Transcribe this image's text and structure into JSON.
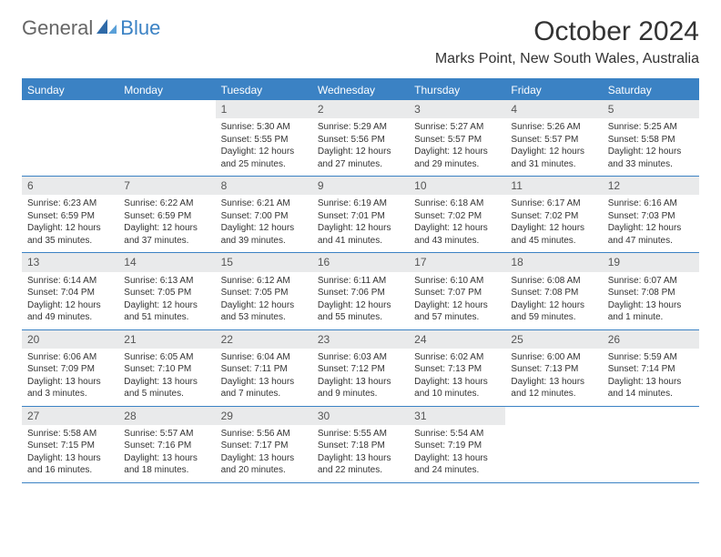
{
  "logo": {
    "general": "General",
    "blue": "Blue"
  },
  "title": "October 2024",
  "location": "Marks Point, New South Wales, Australia",
  "colors": {
    "header_bg": "#3b82c4",
    "header_text": "#ffffff",
    "daynum_bg": "#e9eaeb",
    "daynum_text": "#555555",
    "cell_text": "#333333",
    "border": "#3b82c4",
    "page_bg": "#ffffff"
  },
  "day_names": [
    "Sunday",
    "Monday",
    "Tuesday",
    "Wednesday",
    "Thursday",
    "Friday",
    "Saturday"
  ],
  "layout": {
    "columns": 7,
    "rows": 5,
    "cell_font_size_pt": 7.5,
    "header_font_size_pt": 9,
    "title_font_size_pt": 22,
    "location_font_size_pt": 12
  },
  "weeks": [
    [
      {
        "day": "",
        "sunrise": "",
        "sunset": "",
        "daylight": ""
      },
      {
        "day": "",
        "sunrise": "",
        "sunset": "",
        "daylight": ""
      },
      {
        "day": "1",
        "sunrise": "Sunrise: 5:30 AM",
        "sunset": "Sunset: 5:55 PM",
        "daylight": "Daylight: 12 hours and 25 minutes."
      },
      {
        "day": "2",
        "sunrise": "Sunrise: 5:29 AM",
        "sunset": "Sunset: 5:56 PM",
        "daylight": "Daylight: 12 hours and 27 minutes."
      },
      {
        "day": "3",
        "sunrise": "Sunrise: 5:27 AM",
        "sunset": "Sunset: 5:57 PM",
        "daylight": "Daylight: 12 hours and 29 minutes."
      },
      {
        "day": "4",
        "sunrise": "Sunrise: 5:26 AM",
        "sunset": "Sunset: 5:57 PM",
        "daylight": "Daylight: 12 hours and 31 minutes."
      },
      {
        "day": "5",
        "sunrise": "Sunrise: 5:25 AM",
        "sunset": "Sunset: 5:58 PM",
        "daylight": "Daylight: 12 hours and 33 minutes."
      }
    ],
    [
      {
        "day": "6",
        "sunrise": "Sunrise: 6:23 AM",
        "sunset": "Sunset: 6:59 PM",
        "daylight": "Daylight: 12 hours and 35 minutes."
      },
      {
        "day": "7",
        "sunrise": "Sunrise: 6:22 AM",
        "sunset": "Sunset: 6:59 PM",
        "daylight": "Daylight: 12 hours and 37 minutes."
      },
      {
        "day": "8",
        "sunrise": "Sunrise: 6:21 AM",
        "sunset": "Sunset: 7:00 PM",
        "daylight": "Daylight: 12 hours and 39 minutes."
      },
      {
        "day": "9",
        "sunrise": "Sunrise: 6:19 AM",
        "sunset": "Sunset: 7:01 PM",
        "daylight": "Daylight: 12 hours and 41 minutes."
      },
      {
        "day": "10",
        "sunrise": "Sunrise: 6:18 AM",
        "sunset": "Sunset: 7:02 PM",
        "daylight": "Daylight: 12 hours and 43 minutes."
      },
      {
        "day": "11",
        "sunrise": "Sunrise: 6:17 AM",
        "sunset": "Sunset: 7:02 PM",
        "daylight": "Daylight: 12 hours and 45 minutes."
      },
      {
        "day": "12",
        "sunrise": "Sunrise: 6:16 AM",
        "sunset": "Sunset: 7:03 PM",
        "daylight": "Daylight: 12 hours and 47 minutes."
      }
    ],
    [
      {
        "day": "13",
        "sunrise": "Sunrise: 6:14 AM",
        "sunset": "Sunset: 7:04 PM",
        "daylight": "Daylight: 12 hours and 49 minutes."
      },
      {
        "day": "14",
        "sunrise": "Sunrise: 6:13 AM",
        "sunset": "Sunset: 7:05 PM",
        "daylight": "Daylight: 12 hours and 51 minutes."
      },
      {
        "day": "15",
        "sunrise": "Sunrise: 6:12 AM",
        "sunset": "Sunset: 7:05 PM",
        "daylight": "Daylight: 12 hours and 53 minutes."
      },
      {
        "day": "16",
        "sunrise": "Sunrise: 6:11 AM",
        "sunset": "Sunset: 7:06 PM",
        "daylight": "Daylight: 12 hours and 55 minutes."
      },
      {
        "day": "17",
        "sunrise": "Sunrise: 6:10 AM",
        "sunset": "Sunset: 7:07 PM",
        "daylight": "Daylight: 12 hours and 57 minutes."
      },
      {
        "day": "18",
        "sunrise": "Sunrise: 6:08 AM",
        "sunset": "Sunset: 7:08 PM",
        "daylight": "Daylight: 12 hours and 59 minutes."
      },
      {
        "day": "19",
        "sunrise": "Sunrise: 6:07 AM",
        "sunset": "Sunset: 7:08 PM",
        "daylight": "Daylight: 13 hours and 1 minute."
      }
    ],
    [
      {
        "day": "20",
        "sunrise": "Sunrise: 6:06 AM",
        "sunset": "Sunset: 7:09 PM",
        "daylight": "Daylight: 13 hours and 3 minutes."
      },
      {
        "day": "21",
        "sunrise": "Sunrise: 6:05 AM",
        "sunset": "Sunset: 7:10 PM",
        "daylight": "Daylight: 13 hours and 5 minutes."
      },
      {
        "day": "22",
        "sunrise": "Sunrise: 6:04 AM",
        "sunset": "Sunset: 7:11 PM",
        "daylight": "Daylight: 13 hours and 7 minutes."
      },
      {
        "day": "23",
        "sunrise": "Sunrise: 6:03 AM",
        "sunset": "Sunset: 7:12 PM",
        "daylight": "Daylight: 13 hours and 9 minutes."
      },
      {
        "day": "24",
        "sunrise": "Sunrise: 6:02 AM",
        "sunset": "Sunset: 7:13 PM",
        "daylight": "Daylight: 13 hours and 10 minutes."
      },
      {
        "day": "25",
        "sunrise": "Sunrise: 6:00 AM",
        "sunset": "Sunset: 7:13 PM",
        "daylight": "Daylight: 13 hours and 12 minutes."
      },
      {
        "day": "26",
        "sunrise": "Sunrise: 5:59 AM",
        "sunset": "Sunset: 7:14 PM",
        "daylight": "Daylight: 13 hours and 14 minutes."
      }
    ],
    [
      {
        "day": "27",
        "sunrise": "Sunrise: 5:58 AM",
        "sunset": "Sunset: 7:15 PM",
        "daylight": "Daylight: 13 hours and 16 minutes."
      },
      {
        "day": "28",
        "sunrise": "Sunrise: 5:57 AM",
        "sunset": "Sunset: 7:16 PM",
        "daylight": "Daylight: 13 hours and 18 minutes."
      },
      {
        "day": "29",
        "sunrise": "Sunrise: 5:56 AM",
        "sunset": "Sunset: 7:17 PM",
        "daylight": "Daylight: 13 hours and 20 minutes."
      },
      {
        "day": "30",
        "sunrise": "Sunrise: 5:55 AM",
        "sunset": "Sunset: 7:18 PM",
        "daylight": "Daylight: 13 hours and 22 minutes."
      },
      {
        "day": "31",
        "sunrise": "Sunrise: 5:54 AM",
        "sunset": "Sunset: 7:19 PM",
        "daylight": "Daylight: 13 hours and 24 minutes."
      },
      {
        "day": "",
        "sunrise": "",
        "sunset": "",
        "daylight": ""
      },
      {
        "day": "",
        "sunrise": "",
        "sunset": "",
        "daylight": ""
      }
    ]
  ]
}
